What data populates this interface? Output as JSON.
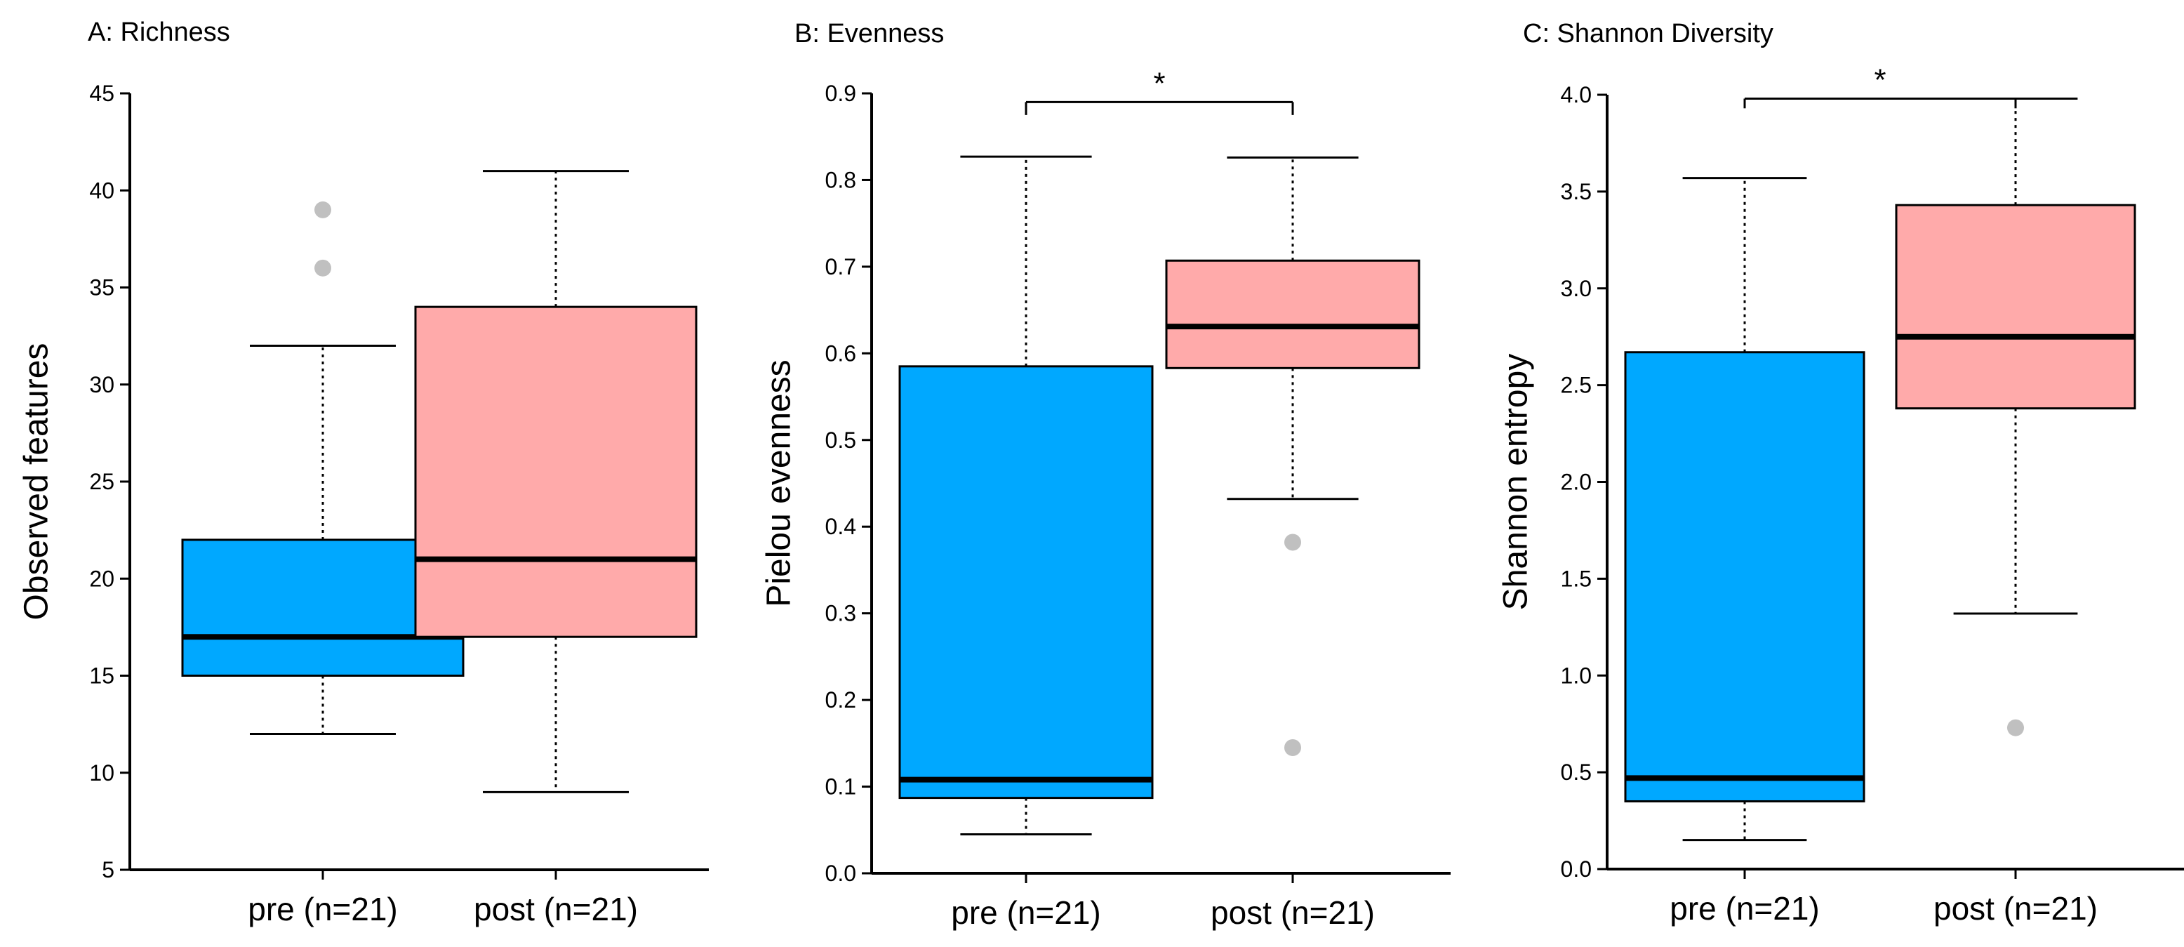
{
  "colors": {
    "pre": "#00a8ff",
    "post": "#ffaaaa",
    "outlier": "#c0c0c0",
    "line": "#000000"
  },
  "chart_data": [
    {
      "type": "boxplot",
      "title": "A: Richness",
      "ylabel": "Observed features",
      "ylim": [
        5,
        45
      ],
      "yticks": [
        5,
        10,
        15,
        20,
        25,
        30,
        35,
        40,
        45
      ],
      "ytick_labels": [
        "5",
        "10",
        "15",
        "20",
        "25",
        "30",
        "35",
        "40",
        "45"
      ],
      "categories": [
        "pre (n=21)",
        "post (n=21)"
      ],
      "boxes": [
        {
          "group": "pre (n=21)",
          "color": "pre",
          "whisker_low": 12,
          "q1": 15,
          "median": 17,
          "q3": 22,
          "whisker_high": 32,
          "outliers": [
            36,
            39
          ]
        },
        {
          "group": "post (n=21)",
          "color": "post",
          "whisker_low": 9,
          "q1": 17,
          "median": 21,
          "q3": 34,
          "whisker_high": 41,
          "outliers": []
        }
      ],
      "significance": null
    },
    {
      "type": "boxplot",
      "title": "B: Evenness",
      "ylabel": "Pielou evenness",
      "ylim": [
        0,
        0.9
      ],
      "yticks": [
        0,
        0.1,
        0.2,
        0.3,
        0.4,
        0.5,
        0.6,
        0.7,
        0.8,
        0.9
      ],
      "ytick_labels": [
        "0.0",
        "0.1",
        "0.2",
        "0.3",
        "0.4",
        "0.5",
        "0.6",
        "0.7",
        "0.8",
        "0.9"
      ],
      "categories": [
        "pre (n=21)",
        "post (n=21)"
      ],
      "boxes": [
        {
          "group": "pre (n=21)",
          "color": "pre",
          "whisker_low": 0.045,
          "q1": 0.087,
          "median": 0.108,
          "q3": 0.585,
          "whisker_high": 0.827,
          "outliers": []
        },
        {
          "group": "post (n=21)",
          "color": "post",
          "whisker_low": 0.432,
          "q1": 0.583,
          "median": 0.631,
          "q3": 0.707,
          "whisker_high": 0.826,
          "outliers": [
            0.382,
            0.145
          ]
        }
      ],
      "significance": {
        "label": "*",
        "y": 0.89,
        "tick_down_to": 0.875
      }
    },
    {
      "type": "boxplot",
      "title": "C: Shannon Diversity",
      "ylabel": "Shannon entropy",
      "ylim": [
        0,
        4
      ],
      "yticks": [
        0,
        0.5,
        1,
        1.5,
        2,
        2.5,
        3,
        3.5,
        4
      ],
      "ytick_labels": [
        "0.0",
        "0.5",
        "1.0",
        "1.5",
        "2.0",
        "2.5",
        "3.0",
        "3.5",
        "4.0"
      ],
      "categories": [
        "pre (n=21)",
        "post (n=21)"
      ],
      "boxes": [
        {
          "group": "pre (n=21)",
          "color": "pre",
          "whisker_low": 0.15,
          "q1": 0.35,
          "median": 0.47,
          "q3": 2.67,
          "whisker_high": 3.57,
          "outliers": []
        },
        {
          "group": "post (n=21)",
          "color": "post",
          "whisker_low": 1.32,
          "q1": 2.38,
          "median": 2.75,
          "q3": 3.43,
          "whisker_high": 3.98,
          "outliers": [
            0.73
          ]
        }
      ],
      "significance": {
        "label": "*",
        "y": 3.98,
        "tick_down_to": 3.93
      }
    }
  ]
}
